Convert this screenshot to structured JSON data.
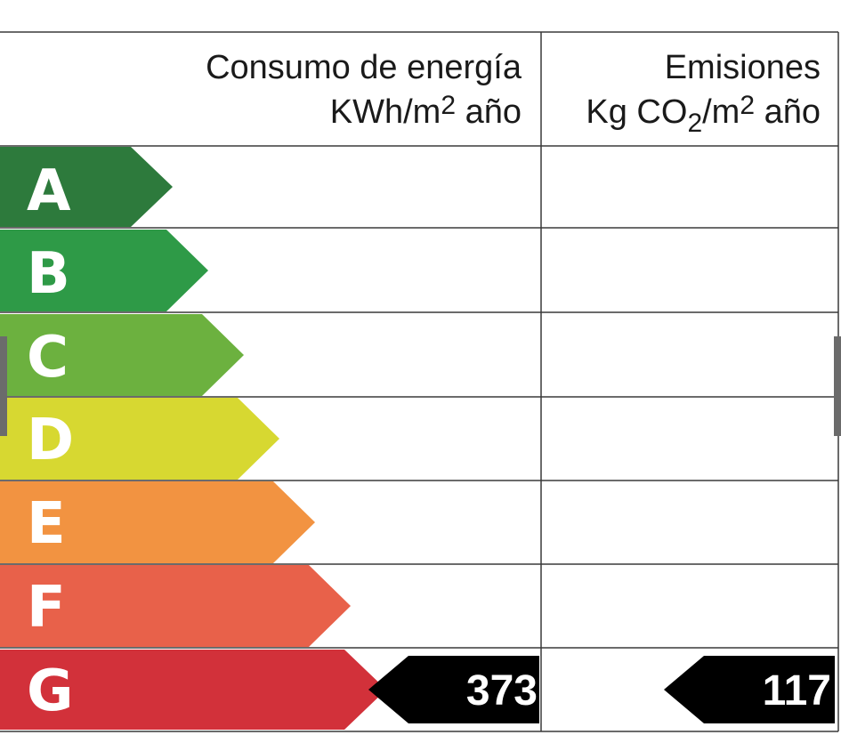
{
  "header": {
    "consumo_line1": "Consumo de energía",
    "consumo_line2_a": "KWh/m",
    "consumo_line2_sup": "2",
    "consumo_line2_b": " año",
    "emisiones_line1": "Emisiones",
    "emisiones_line2_a": "Kg CO",
    "emisiones_line2_sub": "2",
    "emisiones_line2_b": "/m",
    "emisiones_line2_sup": "2",
    "emisiones_line2_c": " año"
  },
  "ratings": [
    {
      "letter": "A",
      "color": "#2d7a3c"
    },
    {
      "letter": "B",
      "color": "#2e9a47"
    },
    {
      "letter": "C",
      "color": "#6cb13f"
    },
    {
      "letter": "D",
      "color": "#d7d831"
    },
    {
      "letter": "E",
      "color": "#f29341"
    },
    {
      "letter": "F",
      "color": "#e8614a"
    },
    {
      "letter": "G",
      "color": "#d2313a"
    }
  ],
  "result": {
    "rating": "G",
    "consumo_value": "373",
    "emisiones_value": "117",
    "indicator_color": "#000000"
  }
}
